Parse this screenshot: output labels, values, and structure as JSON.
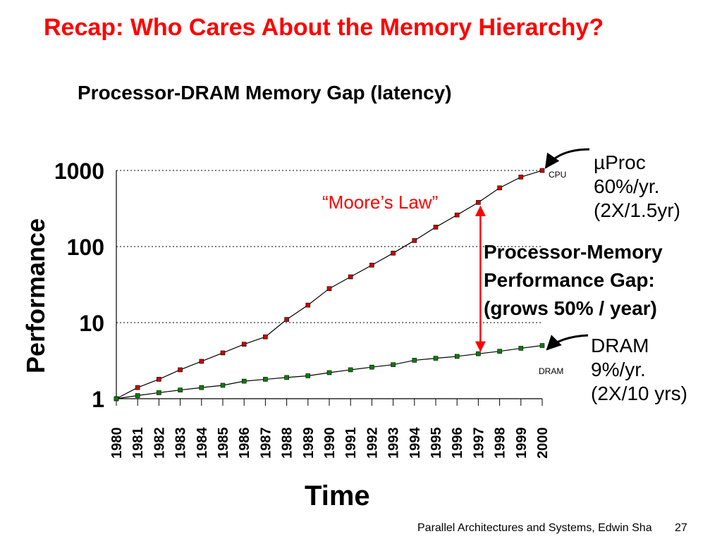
{
  "slide_title": "Recap: Who Cares About the Memory Hierarchy?",
  "footer": {
    "text": "Parallel Architectures and Systems, Edwin Sha",
    "page": "27"
  },
  "annotations": {
    "moore": "“Moore’s Law”",
    "cpu_line1": "µProc",
    "cpu_line2": "60%/yr.",
    "cpu_line3": "(2X/1.5yr)",
    "dram_line1": "DRAM",
    "dram_line2": "9%/yr.",
    "dram_line3": "(2X/10 yrs)",
    "gap_line1": "Processor-Memory",
    "gap_line2": "Performance Gap:",
    "gap_line3": "(grows 50% / year)",
    "cpu_tag": "CPU",
    "dram_tag": "DRAM"
  },
  "colors": {
    "title": "#ff0000",
    "cpu_marker": "#cc0000",
    "dram_marker": "#008000",
    "gap_arrow": "#ff0000"
  },
  "chart_data": {
    "type": "line",
    "title": "Processor-DRAM Memory Gap (latency)",
    "xlabel": "Time",
    "ylabel": "Performance",
    "y_scale": "log",
    "ylim": [
      1,
      1000
    ],
    "y_ticks": [
      "1",
      "10",
      "100",
      "1000"
    ],
    "grid": "dotted horizontal at 10, 100, 1000",
    "x": [
      "1980",
      "1981",
      "1982",
      "1983",
      "1984",
      "1985",
      "1986",
      "1987",
      "1988",
      "1989",
      "1990",
      "1991",
      "1992",
      "1993",
      "1994",
      "1995",
      "1996",
      "1997",
      "1998",
      "1999",
      "2000"
    ],
    "series": [
      {
        "name": "CPU",
        "values": [
          1,
          1.4,
          1.8,
          2.4,
          3.1,
          4.0,
          5.2,
          6.5,
          11,
          17,
          28,
          40,
          57,
          82,
          120,
          180,
          260,
          380,
          590,
          820,
          1000
        ]
      },
      {
        "name": "DRAM",
        "values": [
          1,
          1.1,
          1.2,
          1.3,
          1.4,
          1.5,
          1.7,
          1.8,
          1.9,
          2.0,
          2.2,
          2.4,
          2.6,
          2.8,
          3.2,
          3.4,
          3.6,
          3.9,
          4.2,
          4.6,
          5.0
        ]
      }
    ]
  }
}
